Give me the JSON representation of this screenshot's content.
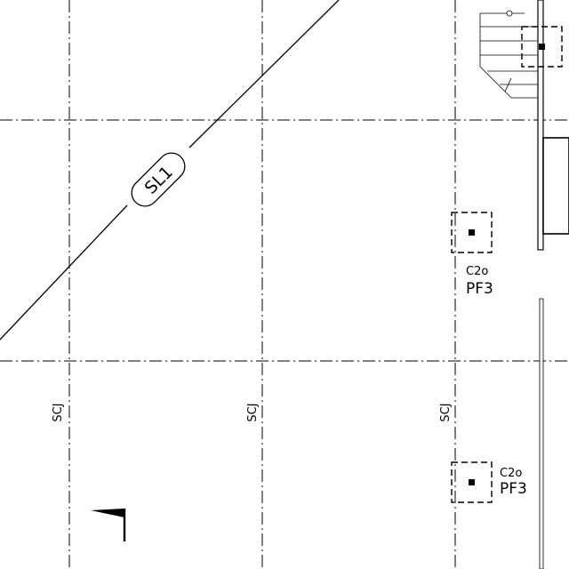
{
  "slab_tag": "SL1",
  "joint_tags": [
    "SCJ",
    "SCJ",
    "SCJ"
  ],
  "columns": [
    {
      "col": "C2o",
      "footing": "PF3"
    },
    {
      "col": "C2o",
      "footing": "PF3"
    }
  ]
}
